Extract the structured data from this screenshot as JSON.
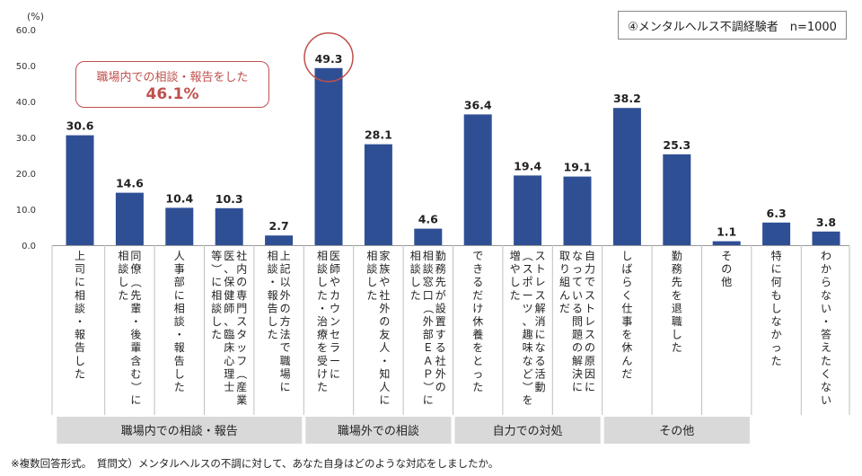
{
  "chart_data": {
    "type": "bar",
    "unit_label": "(%)",
    "ylim": [
      0,
      60
    ],
    "yticks": [
      "0.0",
      "10.0",
      "20.0",
      "30.0",
      "40.0",
      "50.0",
      "60.0"
    ],
    "legend": "④メンタルヘルス不調経験者　n=1000",
    "bar_color": "#2f4f95",
    "categories": [
      [
        "上司に相談・報告した"
      ],
      [
        "同僚（先輩・後輩含む）に",
        "相談した"
      ],
      [
        "人事部に相談・報告した"
      ],
      [
        "社内の専門スタッフ（産業",
        "医、保健師、臨床心理士",
        "等）に相談した"
      ],
      [
        "上記以外の方法で職場に",
        "相談・報告した"
      ],
      [
        "医師やカウンセラーに",
        "相談した・治療を受けた"
      ],
      [
        "家族や社外の友人・知人に",
        "相談した"
      ],
      [
        "勤務先が設置する社外の",
        "相談窓口（外部ＥＡＰ）に",
        "相談した"
      ],
      [
        "できるだけ休養をとった"
      ],
      [
        "ストレス解消になる活動",
        "（スポーツ、趣味など）を",
        "増やした"
      ],
      [
        "自力でストレスの原因に",
        "なっている問題の解決に",
        "取り組んだ"
      ],
      [
        "しばらく仕事を休んだ"
      ],
      [
        "勤務先を退職した"
      ],
      [
        "その他"
      ],
      [
        "特に何もしなかった"
      ],
      [
        "わからない・答えたくない"
      ]
    ],
    "values": [
      30.6,
      14.6,
      10.4,
      10.3,
      2.7,
      49.3,
      28.1,
      4.6,
      36.4,
      19.4,
      19.1,
      38.2,
      25.3,
      1.1,
      6.3,
      3.8
    ],
    "value_labels": [
      "30.6",
      "14.6",
      "10.4",
      "10.3",
      "2.7",
      "49.3",
      "28.1",
      "4.6",
      "36.4",
      "19.4",
      "19.1",
      "38.2",
      "25.3",
      "1.1",
      "6.3",
      "3.8"
    ],
    "highlight_index": 5,
    "groups": [
      {
        "label": "職場内での相談・報告",
        "start": 0,
        "end": 4
      },
      {
        "label": "職場外での相談",
        "start": 5,
        "end": 7
      },
      {
        "label": "自力での対処",
        "start": 8,
        "end": 10
      },
      {
        "label": "その他",
        "start": 11,
        "end": 13
      }
    ],
    "callout": {
      "line1": "職場内での相談・報告をした",
      "line2": "46.1%"
    }
  },
  "footnote": "※複数回答形式。　質問文）メンタルヘルスの不調に対して、あなた自身はどのような対応をしましたか。",
  "colors": {
    "bar": "#2f4f95",
    "highlight": "#c0504d",
    "group_bg": "#d9d9d9"
  }
}
